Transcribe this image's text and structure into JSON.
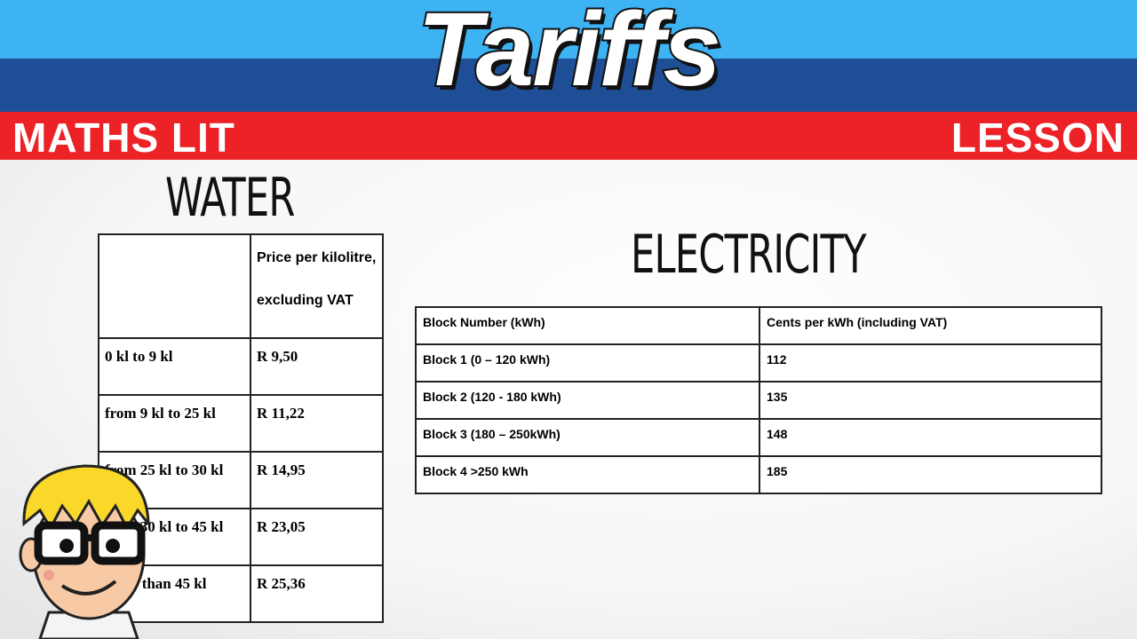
{
  "header": {
    "title": "Tariffs",
    "left_tag": "MATHS LIT",
    "right_tag": "LESSON"
  },
  "water": {
    "heading": "WATER",
    "header": [
      "",
      "Price per kilolitre,",
      "excluding VAT"
    ],
    "rows": [
      [
        "0 kl to 9 kl",
        "R 9,50"
      ],
      [
        "from 9 kl to 25 kl",
        "R 11,22"
      ],
      [
        "from 25 kl to 30 kl",
        "R 14,95"
      ],
      [
        "from 30 kl to 45 kl",
        "R 23,05"
      ],
      [
        "more than 45 kl",
        "R 25,36"
      ]
    ]
  },
  "electricity": {
    "heading": "ELECTRICITY",
    "header": [
      "Block Number (kWh)",
      "Cents per kWh (including VAT)"
    ],
    "rows": [
      [
        "Block 1  (0 – 120 kWh)",
        "112"
      ],
      [
        "Block 2  (120  - 180 kWh)",
        "135"
      ],
      [
        "Block 3   (180 – 250kWh)",
        "148"
      ],
      [
        "Block 4   >250 kWh",
        "185"
      ]
    ]
  },
  "colors": {
    "light_blue": "#3db3f3",
    "dark_blue": "#1e4f96",
    "red": "#ec2227"
  }
}
